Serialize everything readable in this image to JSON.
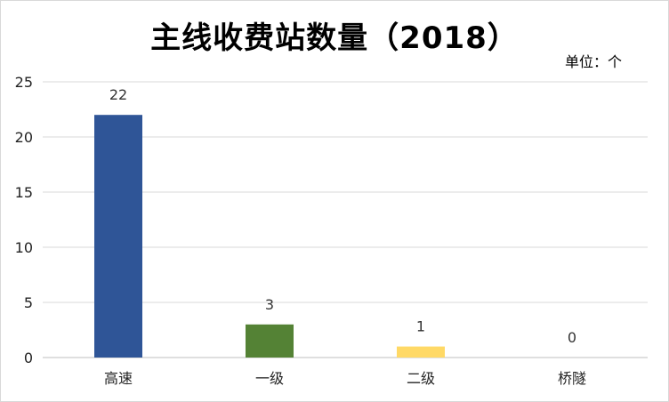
{
  "chart_data": {
    "type": "bar",
    "title": "主线收费站数量（2018）",
    "unit": "单位：个",
    "categories": [
      "高速",
      "一级",
      "二级",
      "桥隧"
    ],
    "values": [
      22,
      3,
      1,
      0
    ],
    "colors": [
      "#2f5597",
      "#548235",
      "#ffd966",
      "#a5a5a5"
    ],
    "ylim": [
      0,
      25
    ],
    "yticks": [
      0,
      5,
      10,
      15,
      20,
      25
    ],
    "grid": true,
    "legend": "none"
  }
}
